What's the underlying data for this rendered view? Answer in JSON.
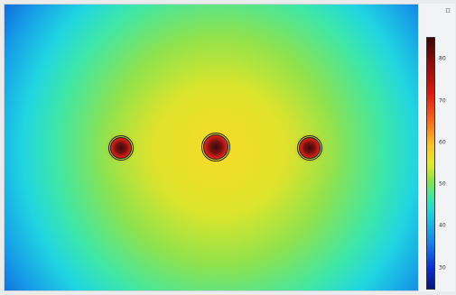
{
  "plot": {
    "type": "heatmap",
    "hotspots": 3
  },
  "legend": {
    "ticks": [
      "80",
      "70",
      "60",
      "50",
      "40",
      "30"
    ]
  },
  "icons": {
    "legend_corner": "pin-icon"
  }
}
